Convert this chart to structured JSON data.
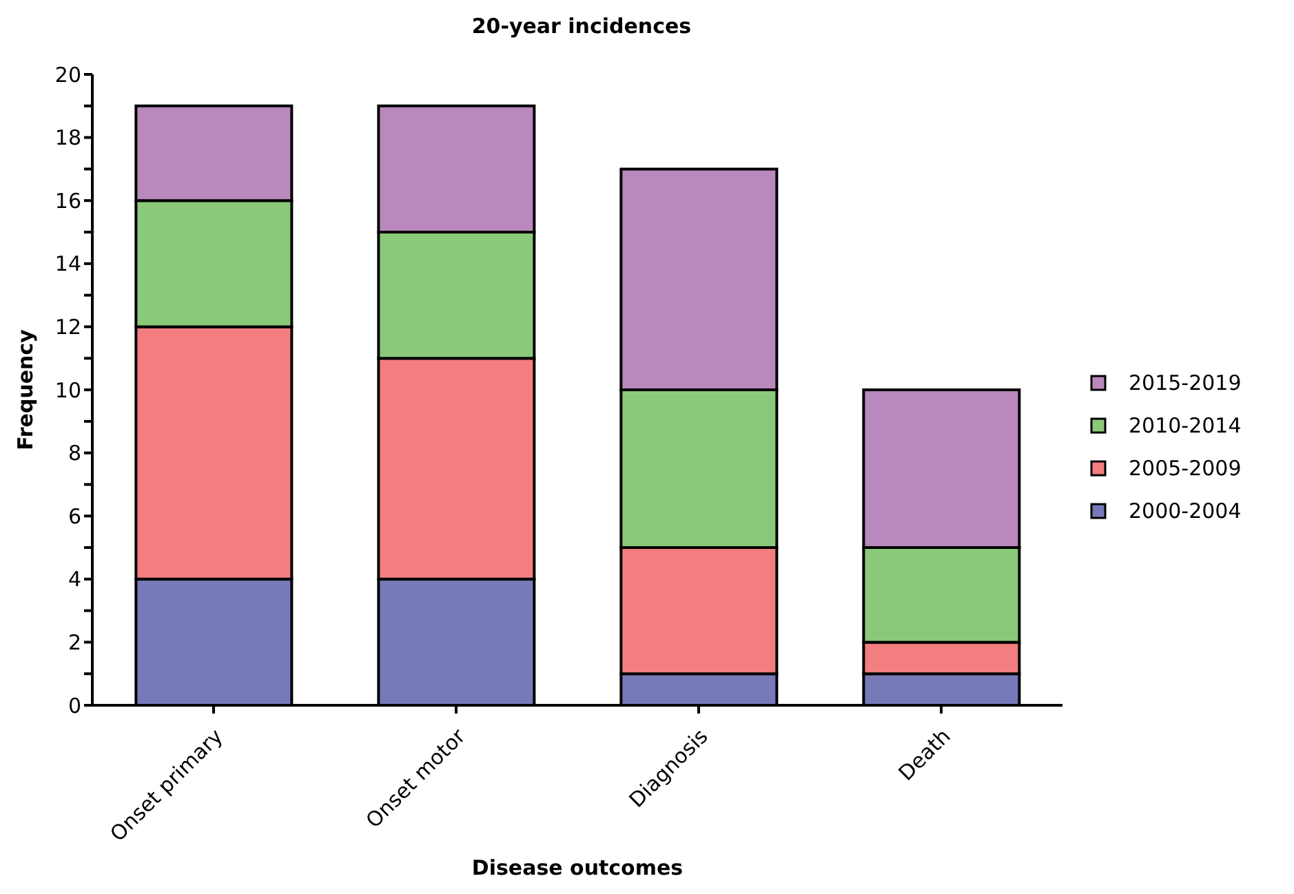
{
  "chart_data": {
    "type": "bar",
    "title": "20-year incidences",
    "xlabel": "Disease outcomes",
    "ylabel": "Frequency",
    "categories": [
      "Onset primary",
      "Onset motor",
      "Diagnosis",
      "Death"
    ],
    "stacked": true,
    "series": [
      {
        "name": "2000-2004",
        "color": "#7779b8",
        "values": [
          4,
          4,
          1,
          1
        ]
      },
      {
        "name": "2005-2009",
        "color": "#f27e80",
        "values": [
          8,
          7,
          4,
          1
        ]
      },
      {
        "name": "2010-2014",
        "color": "#8bc97a",
        "values": [
          4,
          4,
          5,
          3
        ]
      },
      {
        "name": "2015-2019",
        "color": "#b988bc",
        "values": [
          3,
          4,
          7,
          5
        ]
      }
    ],
    "ylim": [
      0,
      20
    ],
    "yticks": [
      0,
      {
        "value": 1,
        "label": null
      },
      2,
      {
        "value": 3,
        "label": null
      },
      4,
      {
        "value": 5,
        "label": null
      },
      6,
      {
        "value": 7,
        "label": null
      },
      8,
      {
        "value": 9,
        "label": null
      },
      10,
      {
        "value": 11,
        "label": null
      },
      12,
      {
        "value": 13,
        "label": null
      },
      14,
      {
        "value": 15,
        "label": null
      },
      16,
      {
        "value": 17,
        "label": null
      },
      18,
      {
        "value": 19,
        "label": null
      },
      20
    ],
    "grid": false,
    "legend": "right"
  }
}
